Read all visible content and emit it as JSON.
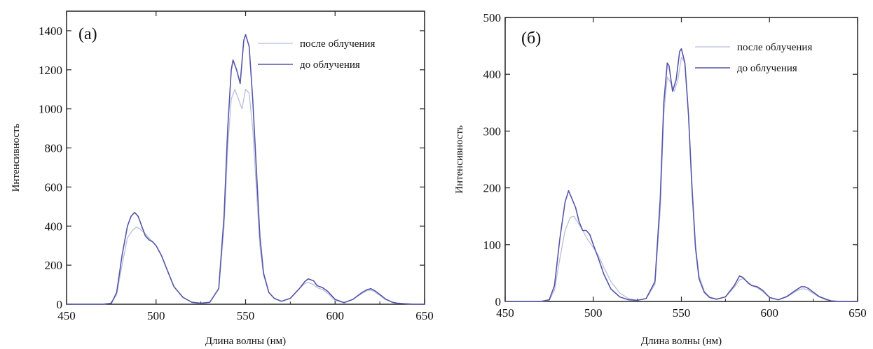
{
  "colors": {
    "before": "#5656a8",
    "after": "#b8bedc",
    "axis": "#222222"
  },
  "chart_data": [
    {
      "type": "line",
      "panel_label": "(а)",
      "xlabel": "Длина волны (нм)",
      "ylabel": "Интенсивность",
      "xlim": [
        450,
        650
      ],
      "ylim": [
        0,
        1500
      ],
      "xticks": [
        450,
        500,
        550,
        600,
        650
      ],
      "yticks": [
        0,
        200,
        400,
        600,
        800,
        1000,
        1200,
        1400
      ],
      "grid": false,
      "legend_position": "top-right",
      "series": [
        {
          "name": "после облучения",
          "color_key": "after",
          "x": [
            450,
            470,
            475,
            478,
            481,
            484,
            487,
            489,
            491,
            494,
            497,
            500,
            503,
            506,
            510,
            515,
            520,
            525,
            530,
            535,
            538,
            540,
            542,
            544,
            546,
            548,
            550,
            552,
            554,
            556,
            558,
            560,
            563,
            566,
            570,
            575,
            580,
            583,
            585,
            588,
            590,
            593,
            596,
            600,
            605,
            610,
            615,
            618,
            620,
            622,
            625,
            628,
            632,
            635,
            640,
            645,
            650
          ],
          "y": [
            0,
            0,
            5,
            50,
            200,
            340,
            380,
            395,
            385,
            360,
            330,
            300,
            250,
            180,
            90,
            35,
            10,
            5,
            10,
            80,
            400,
            800,
            1050,
            1100,
            1050,
            1000,
            1100,
            1080,
            900,
            600,
            300,
            150,
            60,
            30,
            15,
            30,
            80,
            105,
            112,
            100,
            85,
            75,
            55,
            20,
            8,
            25,
            55,
            70,
            72,
            65,
            45,
            25,
            10,
            5,
            2,
            0,
            0
          ]
        },
        {
          "name": "до облучения",
          "color_key": "before",
          "x": [
            450,
            470,
            475,
            478,
            481,
            484,
            486,
            488,
            490,
            492,
            494,
            496,
            498,
            500,
            503,
            506,
            510,
            515,
            520,
            525,
            530,
            535,
            538,
            540,
            542,
            543,
            545,
            547,
            549,
            550,
            552,
            554,
            556,
            558,
            560,
            563,
            566,
            570,
            575,
            580,
            583,
            585,
            588,
            590,
            593,
            596,
            600,
            605,
            610,
            615,
            618,
            620,
            622,
            625,
            628,
            632,
            635,
            640,
            645,
            650
          ],
          "y": [
            0,
            0,
            5,
            60,
            250,
            400,
            450,
            470,
            450,
            400,
            350,
            330,
            320,
            300,
            250,
            180,
            90,
            35,
            10,
            5,
            10,
            80,
            450,
            900,
            1200,
            1250,
            1200,
            1130,
            1350,
            1380,
            1320,
            1050,
            700,
            350,
            160,
            60,
            30,
            15,
            30,
            80,
            115,
            130,
            120,
            95,
            85,
            65,
            25,
            8,
            25,
            60,
            75,
            80,
            70,
            50,
            28,
            10,
            5,
            2,
            0,
            0
          ]
        }
      ]
    },
    {
      "type": "line",
      "panel_label": "(б)",
      "xlabel": "Длина волны (нм)",
      "ylabel": "Интенсивность",
      "xlim": [
        450,
        650
      ],
      "ylim": [
        0,
        500
      ],
      "xticks": [
        450,
        500,
        550,
        600,
        650
      ],
      "yticks": [
        0,
        100,
        200,
        300,
        400,
        500
      ],
      "grid": false,
      "legend_position": "top-right",
      "series": [
        {
          "name": "после облучения",
          "color_key": "after",
          "x": [
            450,
            470,
            475,
            478,
            481,
            484,
            487,
            489,
            491,
            494,
            497,
            500,
            503,
            506,
            510,
            515,
            520,
            525,
            530,
            535,
            538,
            540,
            542,
            544,
            546,
            548,
            550,
            552,
            554,
            556,
            558,
            560,
            563,
            566,
            570,
            575,
            580,
            583,
            585,
            588,
            590,
            593,
            596,
            600,
            605,
            610,
            615,
            618,
            620,
            622,
            625,
            628,
            632,
            635,
            640,
            645,
            650
          ],
          "y": [
            0,
            0,
            2,
            20,
            75,
            125,
            148,
            150,
            140,
            125,
            108,
            95,
            80,
            60,
            35,
            15,
            5,
            2,
            5,
            30,
            160,
            330,
            395,
            385,
            370,
            390,
            430,
            420,
            330,
            210,
            100,
            45,
            18,
            8,
            4,
            8,
            25,
            38,
            40,
            34,
            28,
            24,
            18,
            7,
            3,
            8,
            18,
            22,
            22,
            20,
            14,
            8,
            3,
            1,
            0,
            0,
            0
          ]
        },
        {
          "name": "до облучения",
          "color_key": "before",
          "x": [
            450,
            470,
            475,
            478,
            481,
            484,
            486,
            488,
            490,
            492,
            494,
            496,
            498,
            500,
            503,
            506,
            510,
            515,
            520,
            525,
            530,
            535,
            538,
            540,
            542,
            543,
            545,
            547,
            549,
            550,
            552,
            554,
            556,
            558,
            560,
            563,
            566,
            570,
            575,
            580,
            583,
            585,
            588,
            590,
            593,
            596,
            600,
            605,
            610,
            615,
            618,
            620,
            622,
            625,
            628,
            632,
            635,
            640,
            645,
            650
          ],
          "y": [
            0,
            0,
            3,
            28,
            110,
            175,
            195,
            180,
            165,
            140,
            125,
            125,
            118,
            100,
            75,
            48,
            22,
            8,
            3,
            2,
            5,
            35,
            180,
            350,
            420,
            415,
            370,
            390,
            440,
            445,
            420,
            330,
            200,
            95,
            40,
            16,
            7,
            4,
            8,
            28,
            45,
            42,
            32,
            28,
            26,
            20,
            7,
            3,
            9,
            20,
            26,
            26,
            23,
            16,
            9,
            4,
            1,
            0,
            0,
            0
          ]
        }
      ]
    }
  ]
}
